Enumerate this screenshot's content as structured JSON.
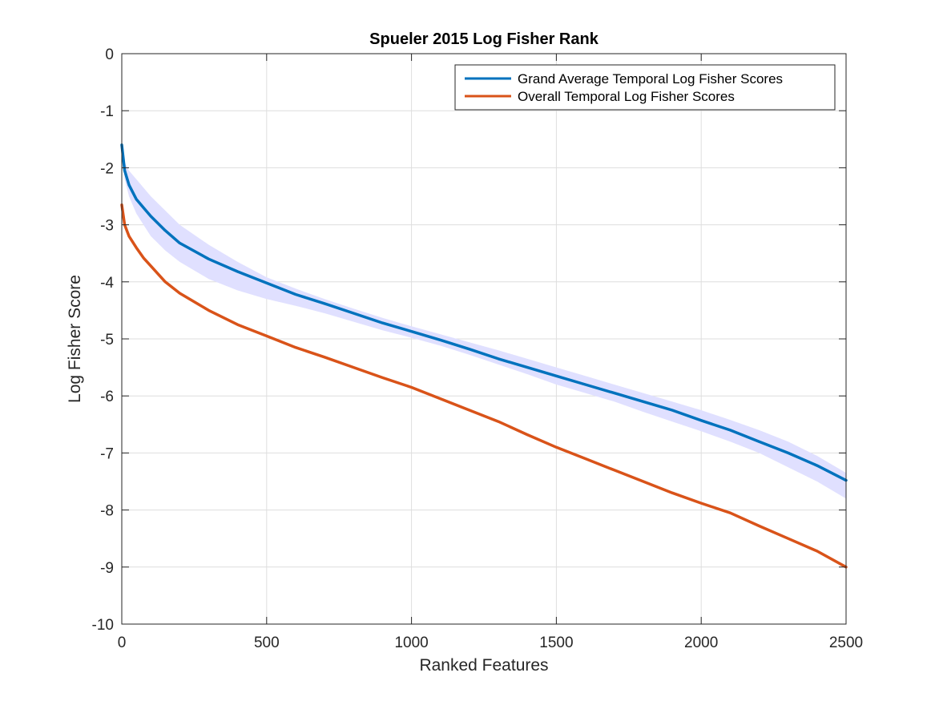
{
  "chart_data": {
    "type": "line",
    "title": "Spueler 2015 Log Fisher Rank",
    "xlabel": "Ranked Features",
    "ylabel": "Log Fisher Score",
    "xlim": [
      0,
      2500
    ],
    "ylim": [
      -10,
      0
    ],
    "xticks": [
      0,
      500,
      1000,
      1500,
      2000,
      2500
    ],
    "yticks": [
      0,
      -1,
      -2,
      -3,
      -4,
      -5,
      -6,
      -7,
      -8,
      -9,
      -10
    ],
    "grid": true,
    "legend_position": "top-right",
    "series": [
      {
        "name": "Grand Average Temporal Log Fisher Scores",
        "color": "#0072BD",
        "x": [
          0,
          10,
          25,
          50,
          75,
          100,
          150,
          200,
          300,
          400,
          500,
          600,
          700,
          800,
          900,
          1000,
          1100,
          1200,
          1300,
          1400,
          1500,
          1600,
          1700,
          1800,
          1900,
          2000,
          2100,
          2200,
          2300,
          2400,
          2500
        ],
        "y": [
          -1.6,
          -2.05,
          -2.3,
          -2.55,
          -2.7,
          -2.85,
          -3.1,
          -3.32,
          -3.6,
          -3.82,
          -4.02,
          -4.22,
          -4.38,
          -4.55,
          -4.72,
          -4.87,
          -5.02,
          -5.18,
          -5.35,
          -5.5,
          -5.65,
          -5.8,
          -5.95,
          -6.1,
          -6.25,
          -6.43,
          -6.6,
          -6.8,
          -7.0,
          -7.22,
          -7.48
        ],
        "band_upper": [
          -1.6,
          -1.9,
          -2.05,
          -2.2,
          -2.35,
          -2.5,
          -2.75,
          -3.0,
          -3.35,
          -3.65,
          -3.92,
          -4.12,
          -4.3,
          -4.47,
          -4.63,
          -4.78,
          -4.92,
          -5.06,
          -5.2,
          -5.35,
          -5.5,
          -5.65,
          -5.8,
          -5.95,
          -6.1,
          -6.25,
          -6.42,
          -6.6,
          -6.8,
          -7.05,
          -7.35
        ],
        "band_lower": [
          -1.6,
          -2.2,
          -2.5,
          -2.8,
          -3.0,
          -3.2,
          -3.45,
          -3.65,
          -3.95,
          -4.15,
          -4.3,
          -4.42,
          -4.55,
          -4.7,
          -4.85,
          -4.98,
          -5.12,
          -5.28,
          -5.45,
          -5.62,
          -5.8,
          -5.95,
          -6.1,
          -6.28,
          -6.45,
          -6.62,
          -6.8,
          -7.0,
          -7.25,
          -7.5,
          -7.8
        ]
      },
      {
        "name": "Overall Temporal Log Fisher Scores",
        "color": "#D95319",
        "x": [
          0,
          10,
          25,
          50,
          75,
          100,
          150,
          200,
          300,
          400,
          500,
          600,
          700,
          800,
          900,
          1000,
          1100,
          1200,
          1300,
          1400,
          1500,
          1600,
          1700,
          1800,
          1900,
          2000,
          2100,
          2200,
          2300,
          2400,
          2500
        ],
        "y": [
          -2.65,
          -3.0,
          -3.2,
          -3.4,
          -3.58,
          -3.72,
          -4.0,
          -4.2,
          -4.5,
          -4.75,
          -4.95,
          -5.15,
          -5.32,
          -5.5,
          -5.68,
          -5.85,
          -6.05,
          -6.25,
          -6.45,
          -6.68,
          -6.9,
          -7.1,
          -7.3,
          -7.5,
          -7.7,
          -7.88,
          -8.05,
          -8.28,
          -8.5,
          -8.72,
          -9.0
        ]
      }
    ]
  }
}
